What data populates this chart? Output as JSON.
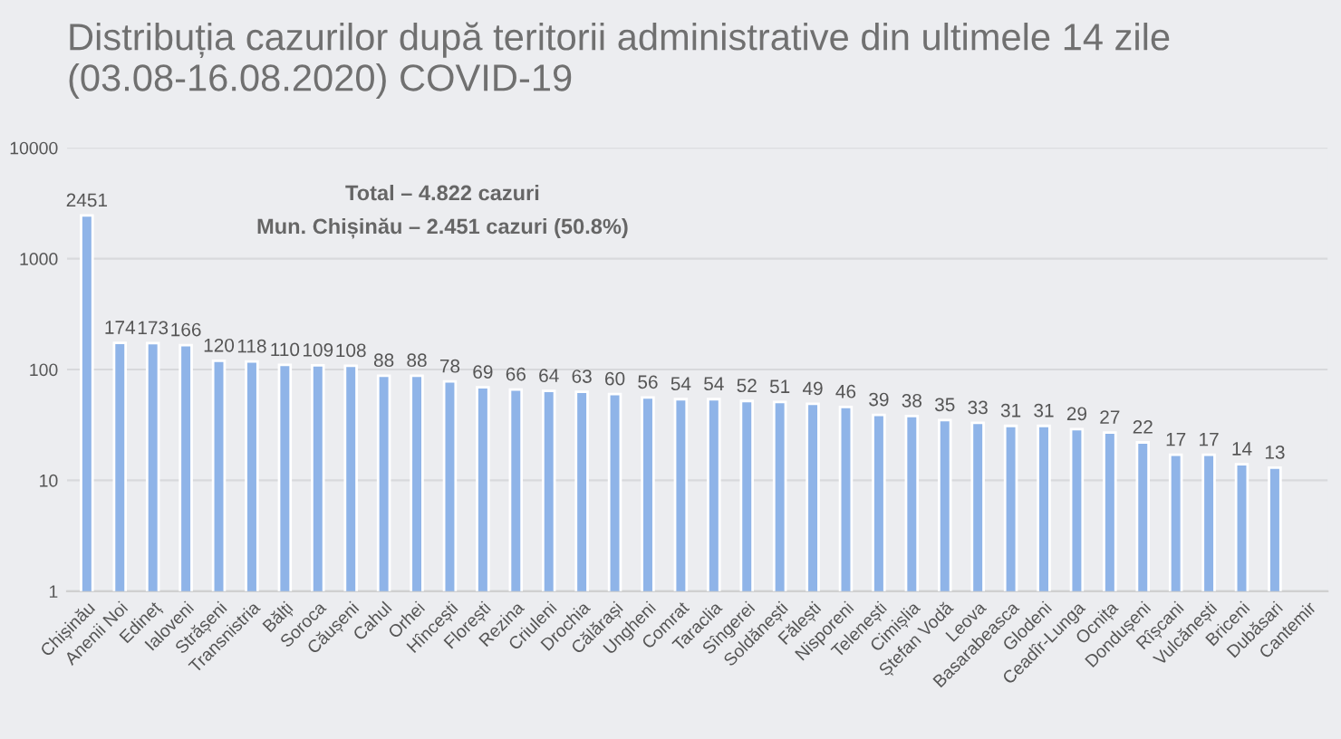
{
  "chart_data": {
    "type": "bar",
    "title": "Distribuția cazurilor după teritorii administrative din ultimele 14 zile (03.08-16.08.2020) COVID-19",
    "annotations": [
      "Total – 4.822 cazuri",
      "Mun. Chișinău – 2.451 cazuri (50.8%)"
    ],
    "categories": [
      "Chișinău",
      "Anenii Noi",
      "Edineț",
      "Ialoveni",
      "Strășeni",
      "Transnistria",
      "Bălți",
      "Soroca",
      "Căușeni",
      "Cahul",
      "Orhei",
      "Hîncești",
      "Florești",
      "Rezina",
      "Criuleni",
      "Drochia",
      "Călărași",
      "Ungheni",
      "Comrat",
      "Taraclia",
      "Sîngerei",
      "Soldănești",
      "Fălești",
      "Nisporeni",
      "Telenești",
      "Cimișlia",
      "Ștefan Vodă",
      "Leova",
      "Basarabeasca",
      "Glodeni",
      "Ceadîr-Lunga",
      "Ocnița",
      "Dondușeni",
      "Rîșcani",
      "Vulcănești",
      "Briceni",
      "Dubăsari",
      "Cantemir"
    ],
    "values": [
      2451,
      174,
      173,
      166,
      120,
      118,
      110,
      109,
      108,
      88,
      88,
      78,
      69,
      66,
      64,
      63,
      60,
      56,
      54,
      54,
      52,
      51,
      49,
      46,
      39,
      38,
      35,
      33,
      31,
      31,
      29,
      27,
      22,
      17,
      17,
      14,
      13,
      null
    ],
    "color": "#8fb4e8",
    "log": true,
    "ylim": [
      1,
      10000
    ],
    "yticks": [
      1,
      10,
      100,
      1000,
      10000
    ],
    "grid": "y",
    "data_labels": true
  }
}
